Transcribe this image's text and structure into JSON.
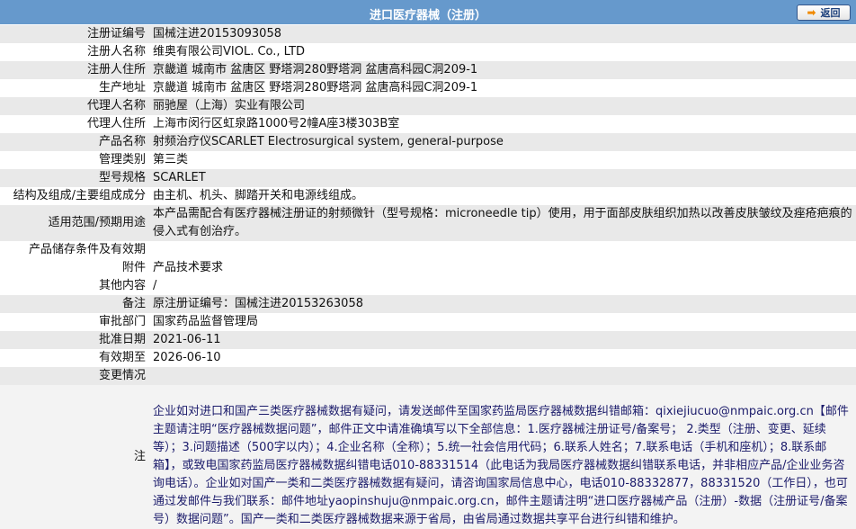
{
  "header": {
    "title": "进口医疗器械（注册）",
    "back_label": "返回",
    "back_icon": "arrow-right-icon"
  },
  "rows": [
    {
      "label": "注册证编号",
      "value": "国械注进20153093058"
    },
    {
      "label": "注册人名称",
      "value": "维奥有限公司VIOL. Co., LTD"
    },
    {
      "label": "注册人住所",
      "value": "京畿道 城南市 盆唐区 野塔洞280野塔洞 盆唐高科园C洞209-1"
    },
    {
      "label": "生产地址",
      "value": "京畿道 城南市 盆唐区 野塔洞280野塔洞 盆唐高科园C洞209-1"
    },
    {
      "label": "代理人名称",
      "value": "丽驰屋（上海）实业有限公司"
    },
    {
      "label": "代理人住所",
      "value": "上海市闵行区虹泉路1000号2幢A座3楼303B室"
    },
    {
      "label": "产品名称",
      "value": "射频治疗仪SCARLET Electrosurgical system, general-purpose"
    },
    {
      "label": "管理类别",
      "value": "第三类"
    },
    {
      "label": "型号规格",
      "value": "SCARLET"
    },
    {
      "label": "结构及组成/主要组成成分",
      "value": "由主机、机头、脚踏开关和电源线组成。"
    },
    {
      "label": "适用范围/预期用途",
      "value": "本产品需配合有医疗器械注册证的射频微针（型号规格：microneedle tip）使用，用于面部皮肤组织加热以改善皮肤皱纹及痤疮疤痕的侵入式有创治疗。"
    },
    {
      "label": "产品储存条件及有效期",
      "value": ""
    },
    {
      "label": "附件",
      "value": "产品技术要求"
    },
    {
      "label": "其他内容",
      "value": "/"
    },
    {
      "label": "备注",
      "value": "原注册证编号：国械注进20153263058"
    },
    {
      "label": "审批部门",
      "value": "国家药品监督管理局"
    },
    {
      "label": "批准日期",
      "value": "2021-06-11"
    },
    {
      "label": "有效期至",
      "value": "2026-06-10"
    },
    {
      "label": "变更情况",
      "value": ""
    }
  ],
  "note": {
    "label": "注",
    "text": "企业如对进口和国产三类医疗器械数据有疑问，请发送邮件至国家药监局医疗器械数据纠错邮箱：qixiejiucuo@nmpaic.org.cn【邮件主题请注明“医疗器械数据问题”，邮件正文中请准确填写以下全部信息：1.医疗器械注册证号/备案号； 2.类型（注册、变更、延续等）；3.问题描述（500字以内）；4.企业名称（全称）；5.统一社会信用代码；6.联系人姓名；7.联系电话（手机和座机）；8.联系邮箱】，或致电国家药监局医疗器械数据纠错电话010-88331514（此电话为我局医疗器械数据纠错联系电话，并非相应产品/企业业务咨询电话）。企业如对国产一类和二类医疗器械数据有疑问，请咨询国家局信息中心，电话010-88332877，88331520（工作日），也可通过发邮件与我们联系：邮件地址yaopinshuju@nmpaic.org.cn，邮件主题请注明“进口医疗器械产品（注册）-数据（注册证号/备案号）数据问题”。国产一类和二类医疗器械数据来源于省局，由省局通过数据共享平台进行纠错和维护。"
  }
}
